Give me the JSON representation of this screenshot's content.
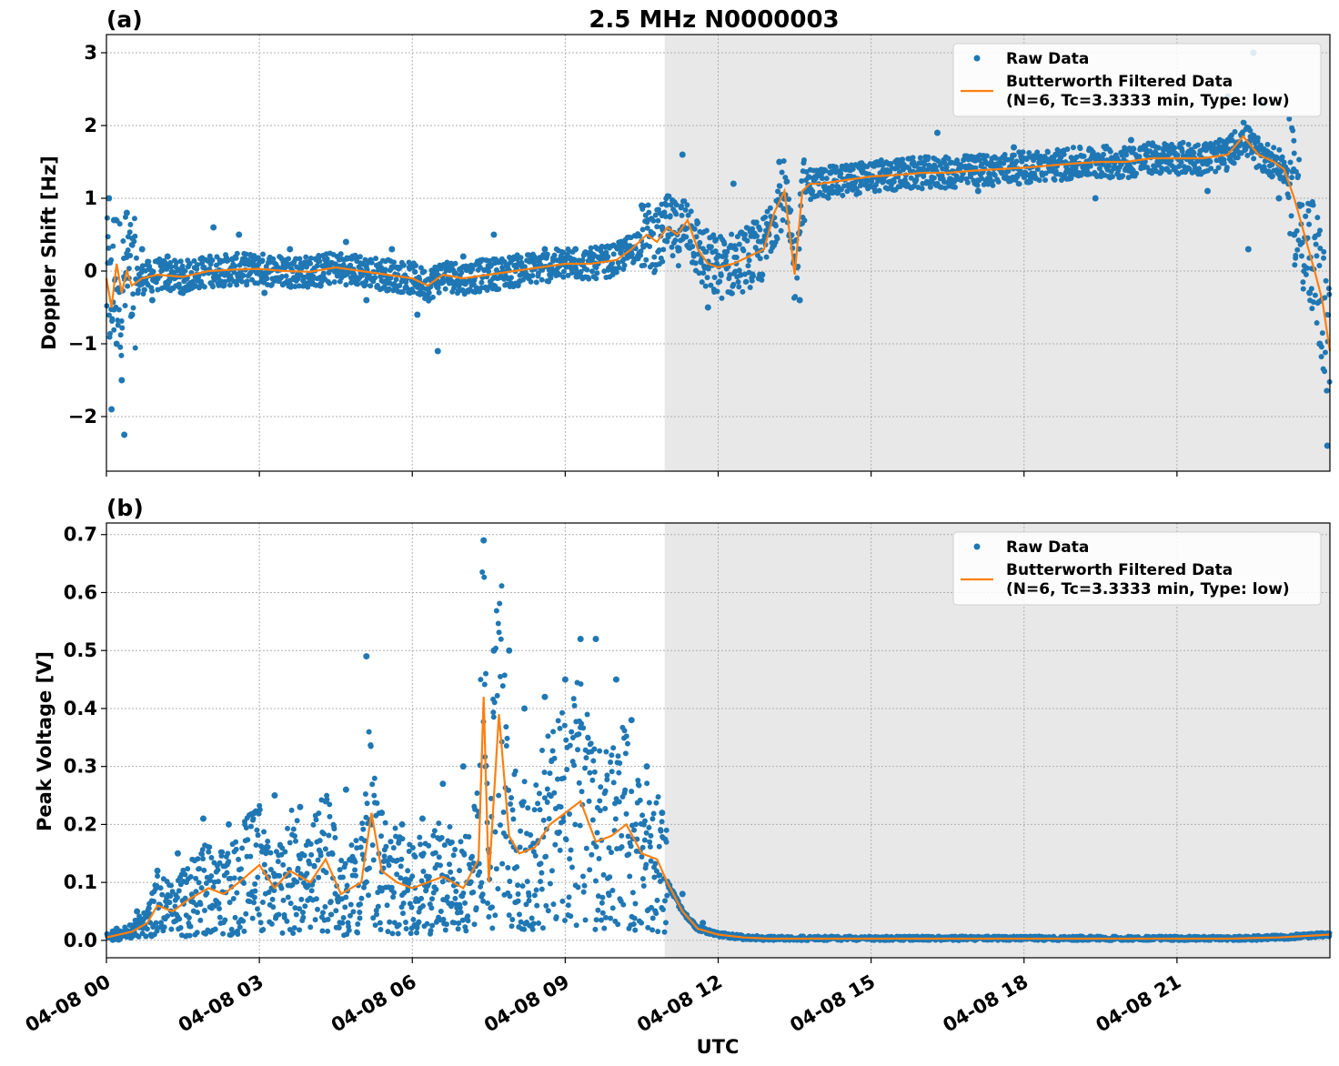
{
  "title": "2.5 MHz N0000003",
  "colors": {
    "raw": "#1f77b4",
    "filtered": "#ff7f0e",
    "shade": "#e8e8e8",
    "grid": "#b0b0b0"
  },
  "chart_data": [
    {
      "panel": "(a)",
      "type": "scatter",
      "ylabel": "Doppler Shift [Hz]",
      "ylim": [
        -2.75,
        3.25
      ],
      "yticks": [
        -2,
        -1,
        0,
        1,
        2,
        3
      ],
      "ytick_labels": [
        "−2",
        "−1",
        "0",
        "1",
        "2",
        "3"
      ],
      "xlim_hours": [
        0,
        24
      ],
      "shaded_hours": [
        10.95,
        24
      ],
      "grid": true,
      "legend": "top-right",
      "legend_entries": [
        "Raw Data",
        "Butterworth Filtered Data",
        "(N=6, Tc=3.3333 min, Type: low)"
      ],
      "series": [
        {
          "name": "Butterworth Filtered Data",
          "kind": "line",
          "x_hours": [
            0,
            0.1,
            0.2,
            0.3,
            0.4,
            0.5,
            0.7,
            1,
            1.5,
            2,
            2.5,
            3,
            3.5,
            4,
            4.5,
            5,
            5.5,
            6,
            6.3,
            6.6,
            7,
            7.5,
            8,
            8.5,
            9,
            9.5,
            10,
            10.3,
            10.6,
            10.8,
            11,
            11.2,
            11.4,
            11.6,
            11.8,
            12,
            12.3,
            12.6,
            12.9,
            13.1,
            13.3,
            13.5,
            13.65,
            13.8,
            14,
            14.5,
            15,
            15.5,
            16,
            16.5,
            17,
            17.5,
            18,
            18.5,
            19,
            19.5,
            20,
            20.5,
            21,
            21.5,
            22,
            22.3,
            22.6,
            22.9,
            23.1,
            23.3,
            23.5,
            23.7,
            23.85,
            24
          ],
          "values": [
            -0.1,
            -0.5,
            0.1,
            -0.3,
            0.0,
            -0.2,
            -0.1,
            -0.05,
            -0.08,
            0.0,
            0.02,
            0.03,
            0.0,
            -0.01,
            0.05,
            0.0,
            -0.05,
            -0.1,
            -0.2,
            -0.05,
            -0.1,
            -0.05,
            0.0,
            0.05,
            0.1,
            0.1,
            0.15,
            0.3,
            0.5,
            0.4,
            0.6,
            0.5,
            0.7,
            0.3,
            0.1,
            0.05,
            0.1,
            0.2,
            0.3,
            0.8,
            1.1,
            -0.05,
            1.1,
            1.2,
            1.2,
            1.25,
            1.3,
            1.32,
            1.35,
            1.35,
            1.38,
            1.4,
            1.42,
            1.45,
            1.48,
            1.5,
            1.5,
            1.55,
            1.55,
            1.55,
            1.6,
            1.85,
            1.6,
            1.5,
            1.4,
            1.0,
            0.5,
            0.0,
            -0.4,
            -1.1
          ]
        },
        {
          "name": "Raw Data",
          "kind": "scatter",
          "x_hours": [
            0.05,
            0.1,
            0.15,
            0.2,
            0.3,
            0.4,
            0.35,
            0.5,
            0.7,
            0.9,
            1.2,
            1.5,
            2.1,
            2.6,
            3.1,
            3.6,
            4.2,
            4.7,
            5.1,
            5.6,
            6.1,
            6.5,
            7.0,
            7.6,
            8.1,
            8.6,
            9.2,
            9.6,
            10.1,
            10.5,
            10.9,
            11.3,
            11.8,
            12.3,
            12.8,
            13.2,
            13.6,
            14.2,
            14.9,
            15.6,
            16.3,
            17.1,
            17.8,
            18.6,
            19.4,
            20.1,
            20.8,
            21.6,
            22.0,
            22.4,
            22.5,
            22.7,
            23.0,
            23.3,
            23.6,
            23.8,
            23.95
          ],
          "values": [
            1.0,
            -1.9,
            0.7,
            -1.0,
            -1.5,
            0.8,
            -2.25,
            -0.6,
            0.3,
            -0.4,
            0.2,
            -0.3,
            0.6,
            0.5,
            -0.3,
            0.3,
            -0.2,
            0.4,
            -0.4,
            0.3,
            -0.6,
            -1.1,
            0.2,
            0.5,
            0.1,
            0.3,
            0.3,
            0.1,
            0.4,
            0.9,
            0.6,
            1.6,
            -0.5,
            1.2,
            -0.1,
            1.5,
            -0.4,
            1.35,
            1.2,
            1.5,
            1.9,
            1.1,
            1.7,
            1.5,
            1.0,
            1.8,
            1.4,
            1.1,
            2.4,
            0.3,
            3.0,
            2.3,
            1.0,
            0.5,
            -0.3,
            -1.0,
            -2.4
          ]
        }
      ]
    },
    {
      "panel": "(b)",
      "type": "scatter",
      "xlabel": "UTC",
      "ylabel": "Peak Voltage [V]",
      "ylim": [
        -0.03,
        0.72
      ],
      "yticks": [
        0.0,
        0.1,
        0.2,
        0.3,
        0.4,
        0.5,
        0.6,
        0.7
      ],
      "ytick_labels": [
        "0.0",
        "0.1",
        "0.2",
        "0.3",
        "0.4",
        "0.5",
        "0.6",
        "0.7"
      ],
      "xlim_hours": [
        0,
        24
      ],
      "xticks_hours": [
        0,
        3,
        6,
        9,
        12,
        15,
        18,
        21
      ],
      "xtick_labels": [
        "04-08 00",
        "04-08 03",
        "04-08 06",
        "04-08 09",
        "04-08 12",
        "04-08 15",
        "04-08 18",
        "04-08 21"
      ],
      "shaded_hours": [
        10.95,
        24
      ],
      "grid": true,
      "legend": "top-right",
      "legend_entries": [
        "Raw Data",
        "Butterworth Filtered Data",
        "(N=6, Tc=3.3333 min, Type: low)"
      ],
      "series": [
        {
          "name": "Butterworth Filtered Data",
          "kind": "line",
          "x_hours": [
            0,
            0.5,
            0.8,
            1.0,
            1.3,
            1.6,
            2.0,
            2.3,
            2.6,
            3.0,
            3.3,
            3.6,
            4.0,
            4.3,
            4.6,
            5.0,
            5.2,
            5.4,
            5.7,
            6.0,
            6.3,
            6.6,
            7.0,
            7.3,
            7.4,
            7.5,
            7.7,
            7.9,
            8.1,
            8.4,
            8.7,
            9.0,
            9.3,
            9.6,
            9.9,
            10.2,
            10.5,
            10.8,
            11.0,
            11.3,
            11.6,
            12.0,
            12.5,
            13.0,
            14.0,
            16.0,
            18.0,
            20.0,
            22.0,
            23.0,
            24.0
          ],
          "values": [
            0.005,
            0.015,
            0.03,
            0.06,
            0.05,
            0.07,
            0.09,
            0.08,
            0.1,
            0.13,
            0.09,
            0.12,
            0.1,
            0.14,
            0.08,
            0.1,
            0.22,
            0.12,
            0.1,
            0.09,
            0.1,
            0.11,
            0.09,
            0.14,
            0.42,
            0.1,
            0.39,
            0.18,
            0.15,
            0.16,
            0.2,
            0.22,
            0.24,
            0.17,
            0.18,
            0.2,
            0.15,
            0.14,
            0.1,
            0.05,
            0.02,
            0.01,
            0.005,
            0.003,
            0.003,
            0.003,
            0.003,
            0.003,
            0.003,
            0.005,
            0.01
          ]
        },
        {
          "name": "Raw Data",
          "kind": "scatter",
          "x_hours": [
            0.2,
            0.6,
            1.0,
            1.4,
            1.9,
            2.4,
            2.9,
            3.3,
            3.8,
            4.3,
            4.7,
            5.1,
            5.4,
            5.8,
            6.2,
            6.6,
            7.0,
            7.4,
            7.6,
            7.9,
            8.2,
            8.6,
            9.0,
            9.3,
            9.6,
            10.0,
            10.3,
            10.6,
            10.9,
            11.3,
            11.7,
            12.2,
            13.0,
            15.0,
            18.0,
            21.0,
            23.5
          ],
          "values": [
            0.02,
            0.05,
            0.12,
            0.15,
            0.21,
            0.2,
            0.22,
            0.25,
            0.23,
            0.24,
            0.26,
            0.49,
            0.22,
            0.2,
            0.21,
            0.27,
            0.3,
            0.69,
            0.5,
            0.5,
            0.4,
            0.42,
            0.45,
            0.52,
            0.52,
            0.45,
            0.38,
            0.3,
            0.22,
            0.08,
            0.03,
            0.01,
            0.005,
            0.003,
            0.003,
            0.003,
            0.01
          ]
        }
      ]
    }
  ]
}
